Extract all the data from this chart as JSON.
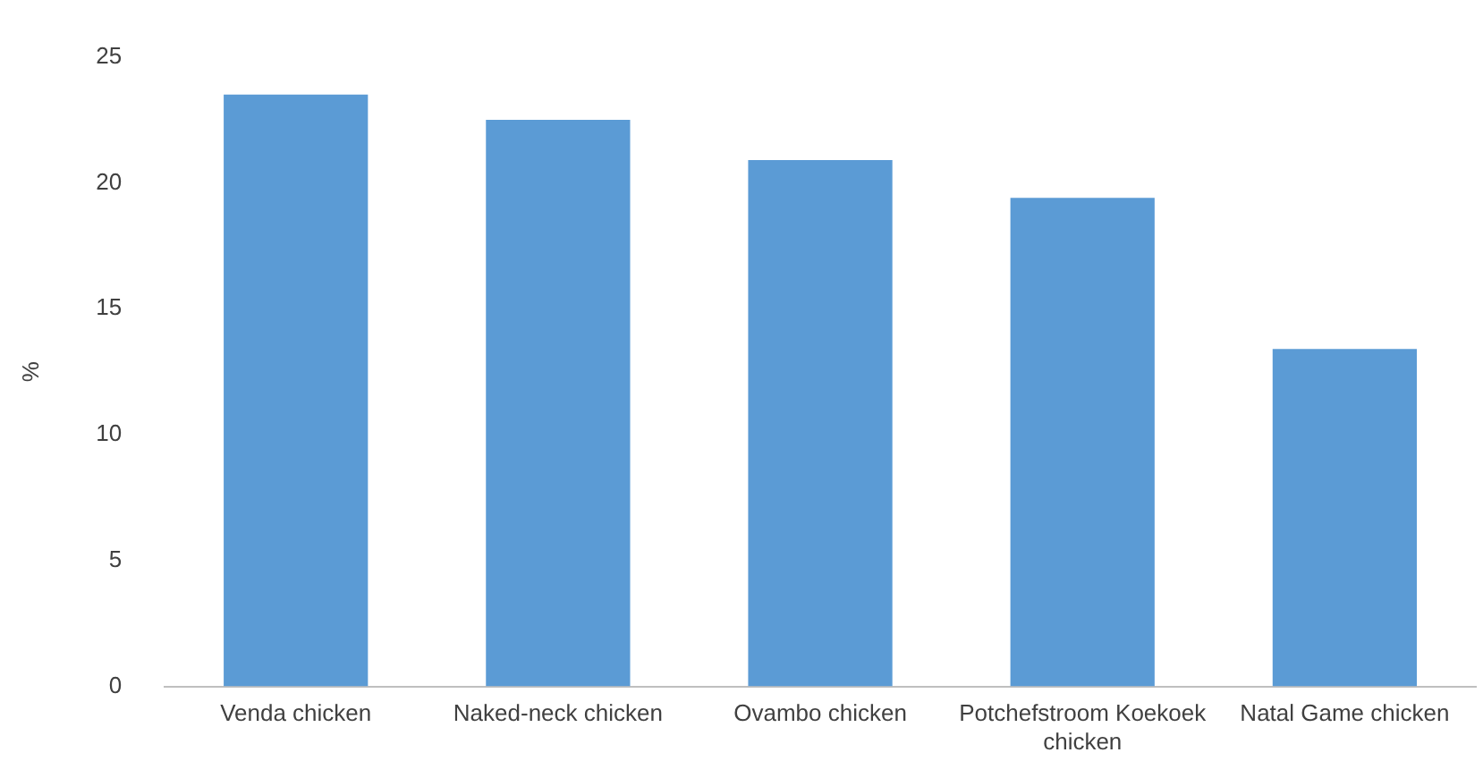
{
  "chart_data": {
    "type": "bar",
    "ylabel": "%",
    "categories": [
      "Venda chicken",
      "Naked-neck chicken",
      "Ovambo chicken",
      "Potchefstroom Koekoek chicken",
      "Natal Game chicken"
    ],
    "values": [
      23.5,
      22.5,
      20.9,
      19.4,
      13.4
    ],
    "color": "#5b9bd5",
    "ylim": [
      0,
      25
    ],
    "yticks": [
      0,
      5,
      10,
      15,
      20,
      25
    ],
    "grid": false,
    "legend": false
  }
}
